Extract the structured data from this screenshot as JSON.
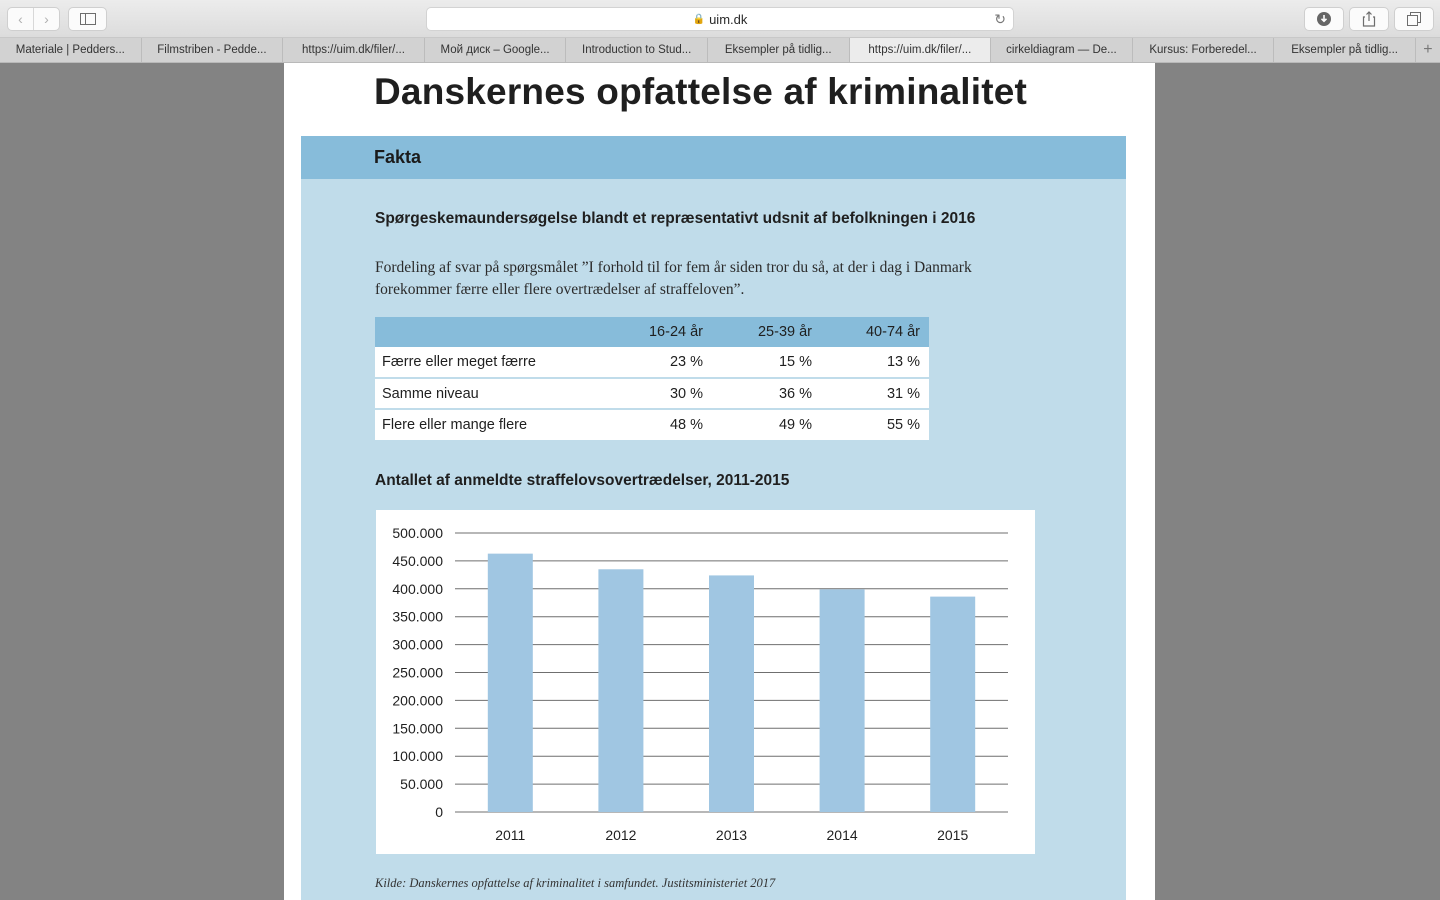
{
  "browser": {
    "url": "uim.dk",
    "tabs": [
      {
        "label": "Materiale | Pedders..."
      },
      {
        "label": "Filmstriben - Pedde..."
      },
      {
        "label": "https://uim.dk/filer/..."
      },
      {
        "label": "Мой диск – Google..."
      },
      {
        "label": "Introduction to Stud..."
      },
      {
        "label": "Eksempler på tidlig..."
      },
      {
        "label": "https://uim.dk/filer/...",
        "active": true
      },
      {
        "label": "cirkeldiagram — De..."
      },
      {
        "label": "Kursus: Forberedel..."
      },
      {
        "label": "Eksempler på tidlig..."
      }
    ]
  },
  "document": {
    "title": "Danskernes opfattelse af kriminalitet",
    "fact_header": "Fakta",
    "survey_heading": "Spørgeskemaundersøgelse blandt et repræsentativt udsnit af befolkningen i 2016",
    "survey_description": "Fordeling af svar på spørgsmålet ”I forhold til for fem år siden tror du så, at der i dag i Danmark forekommer færre eller flere overtrædelser af straffeloven”.",
    "table": {
      "headers": [
        "",
        "16-24 år",
        "25-39 år",
        "40-74 år"
      ],
      "rows": [
        {
          "label": "Færre eller meget færre",
          "values": [
            "23 %",
            "15 %",
            "13 %"
          ]
        },
        {
          "label": "Samme niveau",
          "values": [
            "30 %",
            "36 %",
            "31 %"
          ]
        },
        {
          "label": "Flere eller mange flere",
          "values": [
            "48 %",
            "49 %",
            "55 %"
          ]
        }
      ]
    },
    "chart_heading": "Antallet af anmeldte straffelovsovertrædelser, 2011-2015",
    "source": "Kilde: Danskernes opfattelse af kriminalitet i samfundet. Justitsministeriet 2017"
  },
  "chart_data": {
    "type": "bar",
    "title": "Antallet af anmeldte straffelovsovertrædelser, 2011-2015",
    "categories": [
      "2011",
      "2012",
      "2013",
      "2014",
      "2015"
    ],
    "values": [
      463000,
      435000,
      424000,
      399000,
      386000
    ],
    "ylim": [
      0,
      500000
    ],
    "yticks": [
      0,
      50000,
      100000,
      150000,
      200000,
      250000,
      300000,
      350000,
      400000,
      450000,
      500000
    ],
    "ytick_labels": [
      "0",
      "50.000",
      "100.000",
      "150.000",
      "200.000",
      "250.000",
      "300.000",
      "350.000",
      "400.000",
      "450.000",
      "500.000"
    ],
    "bar_color": "#a0c6e2",
    "grid": true
  }
}
